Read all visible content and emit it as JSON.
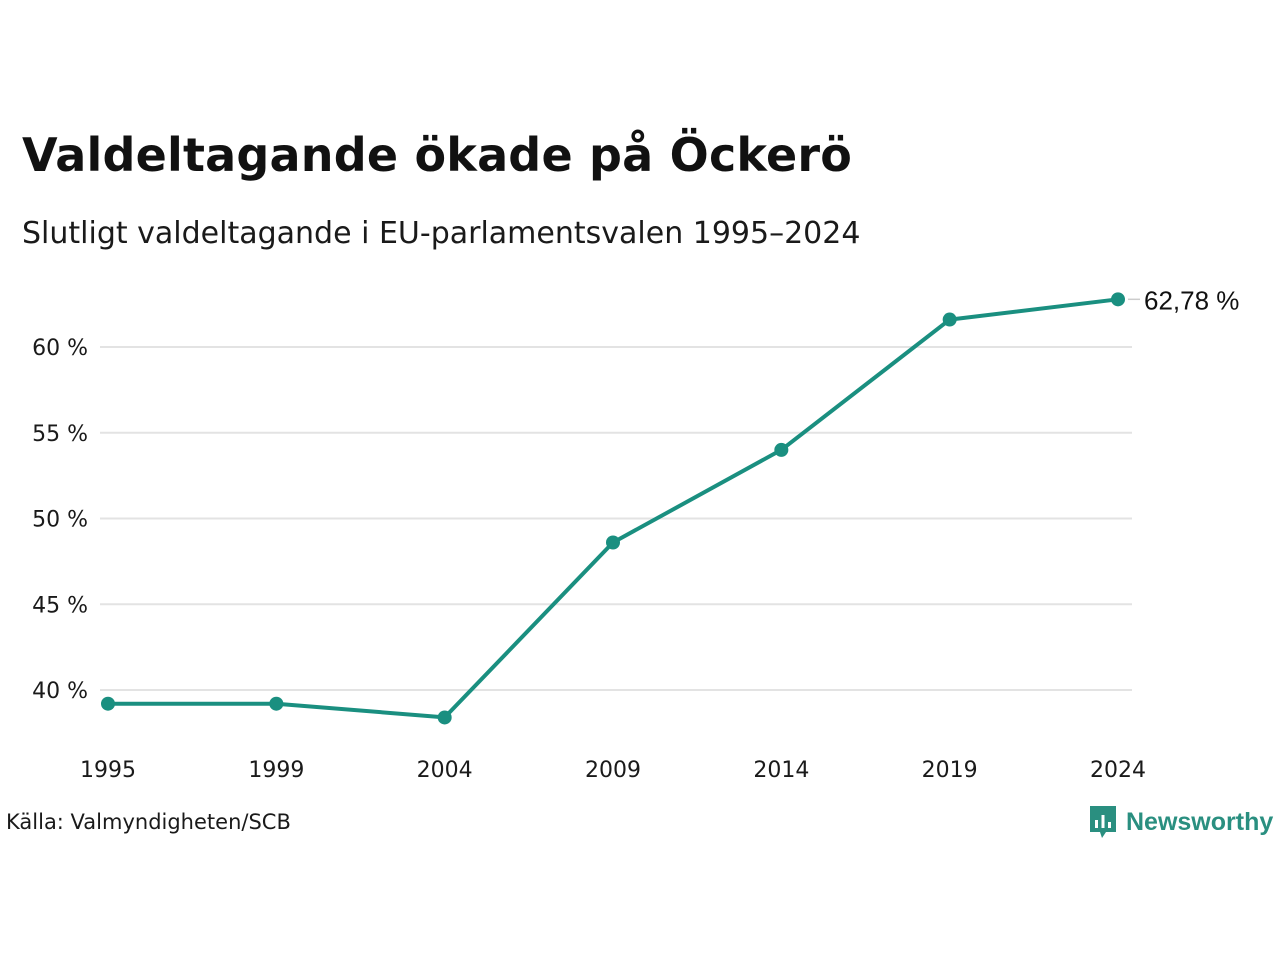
{
  "title": "Valdeltagande ökade på Öckerö",
  "subtitle": "Slutligt valdeltagande i EU-parlamentsvalen 1995–2024",
  "source": "Källa: Valmyndigheten/SCB",
  "brand": {
    "name": "Newsworthy",
    "icon": "newsworthy-logo-icon",
    "color": "#2a8f80"
  },
  "chart_data": {
    "type": "line",
    "title": "Valdeltagande ökade på Öckerö",
    "subtitle": "Slutligt valdeltagande i EU-parlamentsvalen 1995–2024",
    "xlabel": "",
    "ylabel": "",
    "categories": [
      "1995",
      "1999",
      "2004",
      "2009",
      "2014",
      "2019",
      "2024"
    ],
    "series": [
      {
        "values": [
          39.2,
          39.2,
          38.4,
          48.6,
          54.0,
          61.6,
          62.78
        ]
      }
    ],
    "yticks": [
      40,
      45,
      50,
      55,
      60
    ],
    "ytick_labels": [
      "40 %",
      "45 %",
      "50 %",
      "55 %",
      "60 %"
    ],
    "ylim": [
      37.5,
      63.5
    ],
    "grid": true,
    "end_label": "62,78 %",
    "line_color": "#1a8f80",
    "grid_color": "#e3e3e3"
  }
}
